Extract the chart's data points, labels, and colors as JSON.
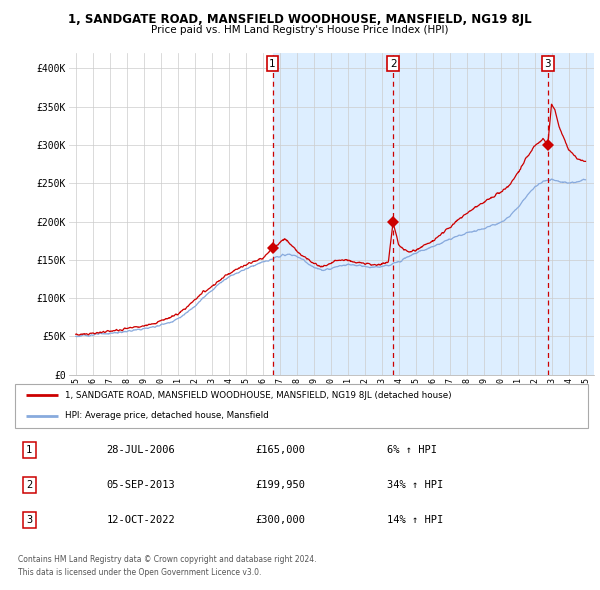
{
  "title": "1, SANDGATE ROAD, MANSFIELD WOODHOUSE, MANSFIELD, NG19 8JL",
  "subtitle": "Price paid vs. HM Land Registry's House Price Index (HPI)",
  "legend_line1": "1, SANDGATE ROAD, MANSFIELD WOODHOUSE, MANSFIELD, NG19 8JL (detached house)",
  "legend_line2": "HPI: Average price, detached house, Mansfield",
  "sale_color": "#cc0000",
  "hpi_color": "#88aadd",
  "shade_color": "#ddeeff",
  "grid_color": "#cccccc",
  "ylim": [
    0,
    420000
  ],
  "yticks": [
    0,
    50000,
    100000,
    150000,
    200000,
    250000,
    300000,
    350000,
    400000
  ],
  "ytick_labels": [
    "£0",
    "£50K",
    "£100K",
    "£150K",
    "£200K",
    "£250K",
    "£300K",
    "£350K",
    "£400K"
  ],
  "sale_dates_float": [
    2006.578,
    2013.675,
    2022.784
  ],
  "sale_prices": [
    165000,
    199950,
    300000
  ],
  "sale_labels": [
    "1",
    "2",
    "3"
  ],
  "table_rows": [
    {
      "num": "1",
      "date": "28-JUL-2006",
      "price": "£165,000",
      "hpi": "6% ↑ HPI"
    },
    {
      "num": "2",
      "date": "05-SEP-2013",
      "price": "£199,950",
      "hpi": "34% ↑ HPI"
    },
    {
      "num": "3",
      "date": "12-OCT-2022",
      "price": "£300,000",
      "hpi": "14% ↑ HPI"
    }
  ],
  "footer1": "Contains HM Land Registry data © Crown copyright and database right 2024.",
  "footer2": "This data is licensed under the Open Government Licence v3.0.",
  "xtick_years": [
    1995,
    1996,
    1997,
    1998,
    1999,
    2000,
    2001,
    2002,
    2003,
    2004,
    2005,
    2006,
    2007,
    2008,
    2009,
    2010,
    2011,
    2012,
    2013,
    2014,
    2015,
    2016,
    2017,
    2018,
    2019,
    2020,
    2021,
    2022,
    2023,
    2024,
    2025
  ],
  "hpi_anchors": [
    [
      1995.0,
      50000
    ],
    [
      1995.5,
      51000
    ],
    [
      1996.0,
      52000
    ],
    [
      1996.5,
      53000
    ],
    [
      1997.0,
      54000
    ],
    [
      1997.5,
      55000
    ],
    [
      1998.0,
      56500
    ],
    [
      1998.5,
      58000
    ],
    [
      1999.0,
      60000
    ],
    [
      1999.5,
      62000
    ],
    [
      2000.0,
      65000
    ],
    [
      2000.5,
      68000
    ],
    [
      2001.0,
      73000
    ],
    [
      2001.5,
      80000
    ],
    [
      2002.0,
      90000
    ],
    [
      2002.5,
      100000
    ],
    [
      2003.0,
      110000
    ],
    [
      2003.5,
      120000
    ],
    [
      2004.0,
      128000
    ],
    [
      2004.5,
      133000
    ],
    [
      2005.0,
      138000
    ],
    [
      2005.5,
      143000
    ],
    [
      2006.0,
      147000
    ],
    [
      2006.5,
      150000
    ],
    [
      2007.0,
      155000
    ],
    [
      2007.5,
      157000
    ],
    [
      2008.0,
      155000
    ],
    [
      2008.5,
      148000
    ],
    [
      2009.0,
      140000
    ],
    [
      2009.5,
      136000
    ],
    [
      2010.0,
      138000
    ],
    [
      2010.5,
      142000
    ],
    [
      2011.0,
      144000
    ],
    [
      2011.5,
      143000
    ],
    [
      2012.0,
      141000
    ],
    [
      2012.5,
      140000
    ],
    [
      2013.0,
      141000
    ],
    [
      2013.5,
      143000
    ],
    [
      2014.0,
      148000
    ],
    [
      2014.5,
      154000
    ],
    [
      2015.0,
      159000
    ],
    [
      2015.5,
      163000
    ],
    [
      2016.0,
      167000
    ],
    [
      2016.5,
      172000
    ],
    [
      2017.0,
      177000
    ],
    [
      2017.5,
      181000
    ],
    [
      2018.0,
      185000
    ],
    [
      2018.5,
      188000
    ],
    [
      2019.0,
      191000
    ],
    [
      2019.5,
      195000
    ],
    [
      2020.0,
      199000
    ],
    [
      2020.5,
      206000
    ],
    [
      2021.0,
      218000
    ],
    [
      2021.5,
      232000
    ],
    [
      2022.0,
      245000
    ],
    [
      2022.5,
      252000
    ],
    [
      2023.0,
      255000
    ],
    [
      2023.5,
      252000
    ],
    [
      2024.0,
      250000
    ],
    [
      2024.5,
      252000
    ],
    [
      2025.0,
      255000
    ]
  ],
  "sale_anchors": [
    [
      1995.0,
      52000
    ],
    [
      1995.5,
      53000
    ],
    [
      1996.0,
      54000
    ],
    [
      1996.5,
      55000
    ],
    [
      1997.0,
      57000
    ],
    [
      1997.5,
      58000
    ],
    [
      1998.0,
      60000
    ],
    [
      1998.5,
      62000
    ],
    [
      1999.0,
      64000
    ],
    [
      1999.5,
      66000
    ],
    [
      2000.0,
      70000
    ],
    [
      2000.5,
      74000
    ],
    [
      2001.0,
      79000
    ],
    [
      2001.5,
      87000
    ],
    [
      2002.0,
      97000
    ],
    [
      2002.5,
      108000
    ],
    [
      2003.0,
      115000
    ],
    [
      2003.5,
      124000
    ],
    [
      2004.0,
      132000
    ],
    [
      2004.5,
      138000
    ],
    [
      2005.0,
      143000
    ],
    [
      2005.5,
      148000
    ],
    [
      2006.0,
      153000
    ],
    [
      2006.4,
      160000
    ],
    [
      2006.578,
      165000
    ],
    [
      2007.0,
      172000
    ],
    [
      2007.3,
      178000
    ],
    [
      2007.8,
      167000
    ],
    [
      2008.2,
      158000
    ],
    [
      2008.6,
      152000
    ],
    [
      2009.0,
      146000
    ],
    [
      2009.4,
      141000
    ],
    [
      2009.8,
      143000
    ],
    [
      2010.2,
      148000
    ],
    [
      2010.6,
      150000
    ],
    [
      2011.0,
      149000
    ],
    [
      2011.5,
      147000
    ],
    [
      2012.0,
      145000
    ],
    [
      2012.5,
      143000
    ],
    [
      2013.0,
      144000
    ],
    [
      2013.4,
      147000
    ],
    [
      2013.675,
      199950
    ],
    [
      2014.0,
      170000
    ],
    [
      2014.3,
      163000
    ],
    [
      2014.6,
      160000
    ],
    [
      2015.0,
      163000
    ],
    [
      2015.5,
      168000
    ],
    [
      2016.0,
      175000
    ],
    [
      2016.5,
      183000
    ],
    [
      2017.0,
      192000
    ],
    [
      2017.5,
      202000
    ],
    [
      2018.0,
      210000
    ],
    [
      2018.5,
      218000
    ],
    [
      2019.0,
      225000
    ],
    [
      2019.5,
      232000
    ],
    [
      2020.0,
      238000
    ],
    [
      2020.5,
      248000
    ],
    [
      2021.0,
      262000
    ],
    [
      2021.5,
      282000
    ],
    [
      2022.0,
      298000
    ],
    [
      2022.5,
      308000
    ],
    [
      2022.784,
      300000
    ],
    [
      2023.0,
      355000
    ],
    [
      2023.2,
      345000
    ],
    [
      2023.5,
      320000
    ],
    [
      2024.0,
      295000
    ],
    [
      2024.5,
      282000
    ],
    [
      2025.0,
      278000
    ]
  ]
}
